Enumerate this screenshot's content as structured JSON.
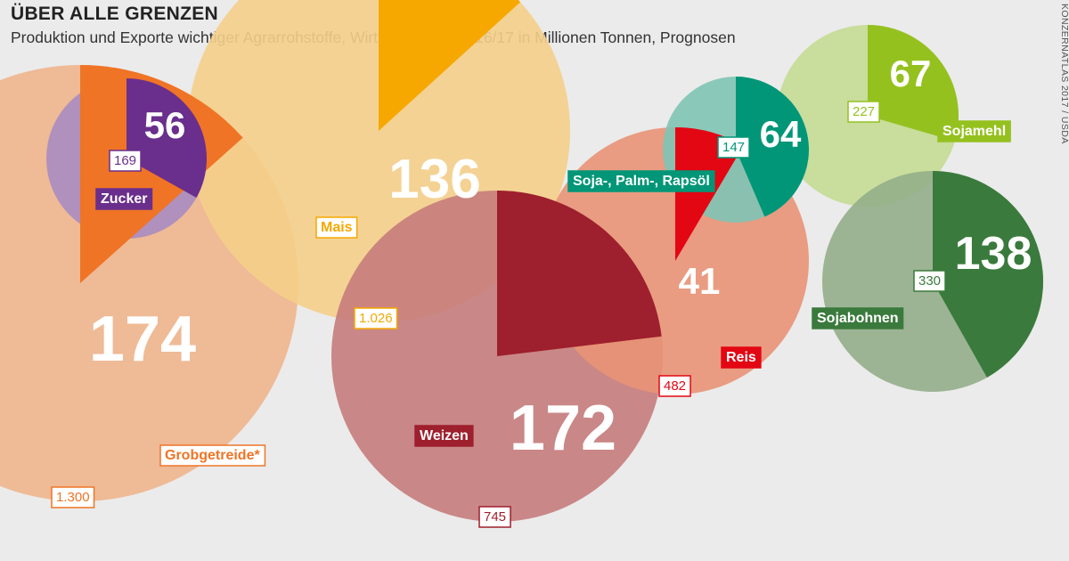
{
  "title": "ÜBER ALLE GRENZEN",
  "subtitle": "Produktion und Exporte wichtiger Agrarrohstoffe, Wirtschaftsjahr 2016/17 in Millionen Tonnen, Prognosen",
  "source": "KONZERNATLAS 2017 / USDA",
  "chart_data": {
    "type": "pie",
    "description_fields": [
      "production",
      "exports"
    ],
    "series": [
      {
        "name": "Grobgetreide*",
        "production": 1300,
        "exports": 174,
        "production_label": "1.300",
        "exports_label": "174",
        "color_full": "#f0b58d",
        "color_slice": "#ef7426",
        "label_style": "outline"
      },
      {
        "name": "Mais",
        "production": 1026,
        "exports": 136,
        "production_label": "1.026",
        "exports_label": "136",
        "color_full": "#f5cf8a",
        "color_slice": "#f6a800",
        "label_style": "outline"
      },
      {
        "name": "Weizen",
        "production": 745,
        "exports": 172,
        "production_label": "745",
        "exports_label": "172",
        "color_full": "#c77c7c",
        "color_slice": "#9e1f2d",
        "label_style": "filled"
      },
      {
        "name": "Reis",
        "production": 482,
        "exports": 41,
        "production_label": "482",
        "exports_label": "41",
        "color_full": "#e99477",
        "color_slice": "#e30613",
        "label_style": "filled"
      },
      {
        "name": "Zucker",
        "production": 169,
        "exports": 56,
        "production_label": "169",
        "exports_label": "56",
        "color_full": "#a98cc0",
        "color_slice": "#6a2e8c",
        "label_style": "filled"
      },
      {
        "name": "Soja-, Palm-, Rapsöl",
        "production": 147,
        "exports": 64,
        "production_label": "147",
        "exports_label": "64",
        "color_full": "#7fc4b4",
        "color_slice": "#009677",
        "label_style": "filled"
      },
      {
        "name": "Sojamehl",
        "production": 227,
        "exports": 67,
        "production_label": "227",
        "exports_label": "67",
        "color_full": "#c5db93",
        "color_slice": "#95c11f",
        "label_style": "filled"
      },
      {
        "name": "Sojabohnen",
        "production": 330,
        "exports": 138,
        "production_label": "330",
        "exports_label": "138",
        "color_full": "#94ae8a",
        "color_slice": "#3a7a3c",
        "label_style": "filled"
      }
    ]
  }
}
